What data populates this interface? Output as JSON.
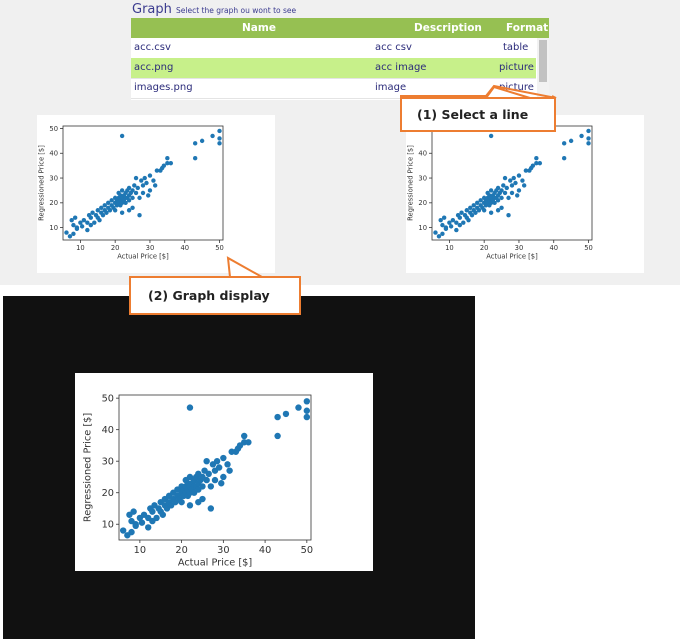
{
  "header": {
    "title": "Graph",
    "subtitle": "Select the graph ou wont to see"
  },
  "table": {
    "columns": [
      "Name",
      "Description",
      "Format"
    ],
    "rows": [
      {
        "name": "acc.csv",
        "description": "acc csv",
        "format": "table",
        "selected": false
      },
      {
        "name": "acc.png",
        "description": "acc image",
        "format": "picture",
        "selected": true
      },
      {
        "name": "images.png",
        "description": "image",
        "format": "picture",
        "selected": false
      }
    ]
  },
  "callouts": {
    "select_line": "(1) Select a line",
    "graph_display": "(2) Graph display"
  },
  "chart_data": {
    "type": "scatter",
    "xlabel": "Actual Price [$]",
    "ylabel": "Regressioned Price [$]",
    "xlim": [
      5,
      51
    ],
    "ylim": [
      5,
      51
    ],
    "xticks": [
      10,
      20,
      30,
      40,
      50
    ],
    "yticks": [
      10,
      20,
      30,
      40,
      50
    ],
    "color": "#1f77b4",
    "points": [
      [
        6,
        8
      ],
      [
        7,
        6.5
      ],
      [
        8,
        7.5
      ],
      [
        8,
        11
      ],
      [
        7.5,
        13
      ],
      [
        8.5,
        14
      ],
      [
        9,
        10
      ],
      [
        10,
        12
      ],
      [
        10.5,
        10.5
      ],
      [
        11,
        13
      ],
      [
        12,
        12
      ],
      [
        12.5,
        15
      ],
      [
        13,
        11
      ],
      [
        13,
        14
      ],
      [
        13.5,
        16
      ],
      [
        14,
        12
      ],
      [
        14.5,
        15
      ],
      [
        15,
        14
      ],
      [
        15,
        17
      ],
      [
        15.5,
        13
      ],
      [
        16,
        16
      ],
      [
        16,
        18
      ],
      [
        16.5,
        15
      ],
      [
        17,
        17
      ],
      [
        17,
        19
      ],
      [
        17.5,
        16
      ],
      [
        18,
        18
      ],
      [
        18,
        20
      ],
      [
        18.5,
        17
      ],
      [
        19,
        19
      ],
      [
        19,
        21
      ],
      [
        19.5,
        18
      ],
      [
        20,
        20
      ],
      [
        20,
        22
      ],
      [
        20,
        17
      ],
      [
        20.5,
        21
      ],
      [
        20.5,
        19
      ],
      [
        21,
        20
      ],
      [
        21,
        22
      ],
      [
        21,
        24
      ],
      [
        21.5,
        21
      ],
      [
        21.5,
        23
      ],
      [
        21.5,
        19
      ],
      [
        22,
        22
      ],
      [
        22,
        20
      ],
      [
        22,
        25
      ],
      [
        22.5,
        21
      ],
      [
        22.5,
        23
      ],
      [
        23,
        22
      ],
      [
        23,
        24
      ],
      [
        23,
        20
      ],
      [
        23.5,
        25
      ],
      [
        23.5,
        22
      ],
      [
        24,
        23
      ],
      [
        24,
        21
      ],
      [
        24,
        26
      ],
      [
        24.5,
        24
      ],
      [
        25,
        22
      ],
      [
        25,
        25
      ],
      [
        25,
        18
      ],
      [
        25.5,
        27
      ],
      [
        26,
        24
      ],
      [
        26,
        30
      ],
      [
        26.5,
        26
      ],
      [
        27,
        15
      ],
      [
        27,
        22
      ],
      [
        27.5,
        29
      ],
      [
        28,
        27
      ],
      [
        28,
        24
      ],
      [
        28.5,
        30
      ],
      [
        29,
        28
      ],
      [
        29.5,
        23
      ],
      [
        30,
        25
      ],
      [
        30,
        31
      ],
      [
        31,
        29
      ],
      [
        31.5,
        27
      ],
      [
        32,
        33
      ],
      [
        33,
        33
      ],
      [
        33.5,
        34
      ],
      [
        34,
        35
      ],
      [
        35,
        36
      ],
      [
        35,
        38
      ],
      [
        36,
        36
      ],
      [
        43,
        38
      ],
      [
        43,
        44
      ],
      [
        45,
        45
      ],
      [
        48,
        47
      ],
      [
        50,
        44
      ],
      [
        50,
        46
      ],
      [
        50,
        49
      ],
      [
        22,
        47
      ],
      [
        22,
        16
      ],
      [
        24,
        17
      ],
      [
        12,
        9
      ],
      [
        9,
        9.5
      ]
    ]
  }
}
